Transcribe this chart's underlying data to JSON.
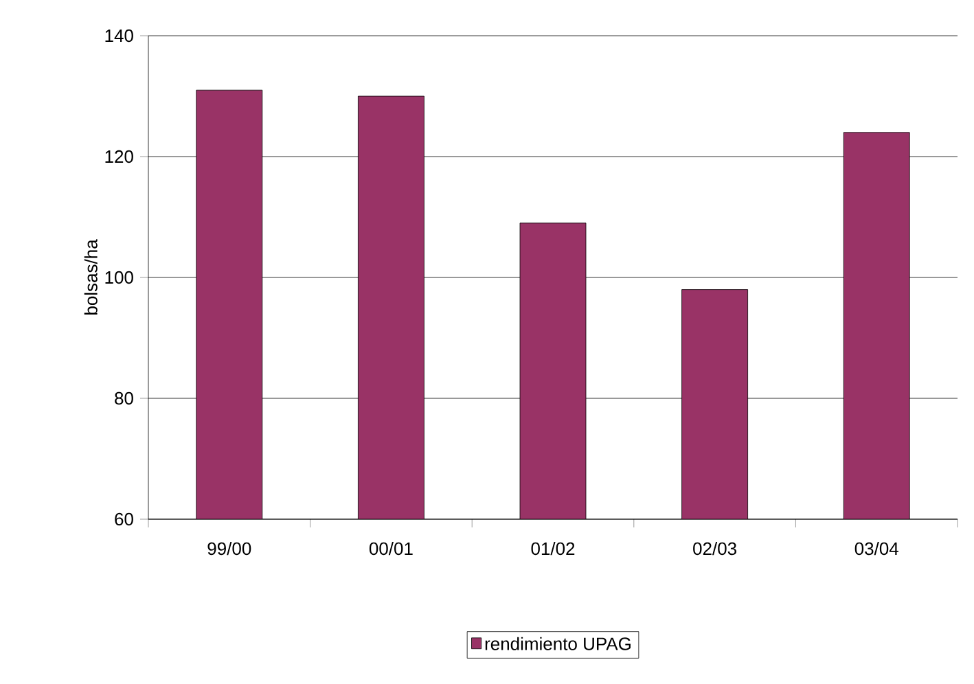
{
  "chart_data": {
    "type": "bar",
    "ylabel": "bolsas/ha",
    "categories": [
      "99/00",
      "00/01",
      "01/02",
      "02/03",
      "03/04"
    ],
    "series": [
      {
        "name": "rendimiento UPAG",
        "color": "#993366",
        "values": [
          131,
          130,
          109,
          98,
          124
        ]
      }
    ],
    "ylim": [
      60,
      140
    ],
    "yticks": [
      60,
      80,
      100,
      120,
      140
    ],
    "grid": "y",
    "legend": "bottom"
  }
}
